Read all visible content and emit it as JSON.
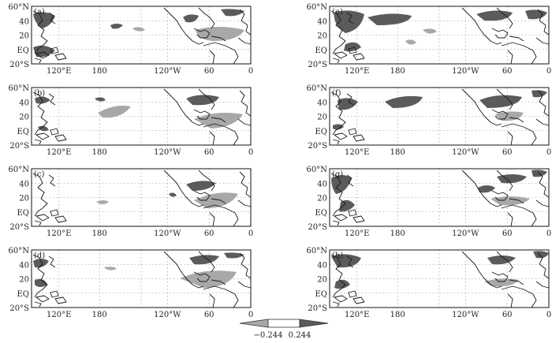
{
  "panels": [
    {
      "label": "(a)"
    },
    {
      "label": "(b)"
    },
    {
      "label": "(c)"
    },
    {
      "label": "(d)"
    },
    {
      "label": "(e)"
    },
    {
      "label": "(f)"
    },
    {
      "label": "(g)"
    },
    {
      "label": "(h)"
    }
  ],
  "lat_ticks": [
    "60°N",
    "40",
    "20",
    "EQ",
    "20°S"
  ],
  "lon_ticks": [
    "120°E",
    "180",
    "120°W",
    "60",
    "0"
  ],
  "legend": {
    "low_label": "−0.244",
    "high_label": "0.244",
    "colors": {
      "negative": "#a8a8a8",
      "neutral": "#ffffff",
      "positive": "#5b5b5b"
    }
  }
}
